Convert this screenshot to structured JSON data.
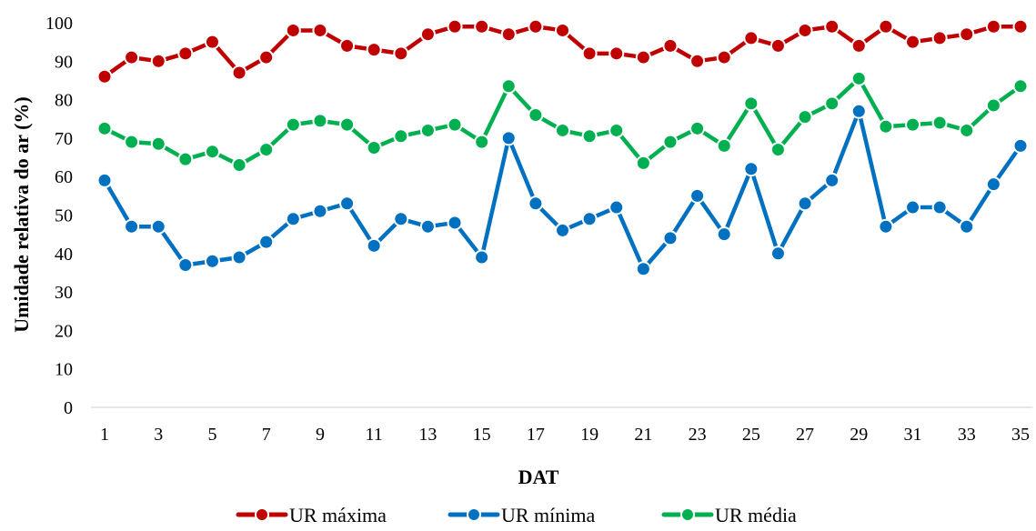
{
  "chart_data": {
    "type": "line",
    "title": "",
    "xlabel": "DAT",
    "ylabel": "Umidade relativa do ar (%)",
    "ylim": [
      0,
      100
    ],
    "yticks": [
      0,
      10,
      20,
      30,
      40,
      50,
      60,
      70,
      80,
      90,
      100
    ],
    "x": [
      1,
      2,
      3,
      4,
      5,
      6,
      7,
      8,
      9,
      10,
      11,
      12,
      13,
      14,
      15,
      16,
      17,
      18,
      19,
      20,
      21,
      22,
      23,
      24,
      25,
      26,
      27,
      28,
      29,
      30,
      31,
      32,
      33,
      34,
      35
    ],
    "xtick_labels": [
      "1",
      "3",
      "5",
      "7",
      "9",
      "11",
      "13",
      "15",
      "17",
      "19",
      "21",
      "23",
      "25",
      "27",
      "29",
      "31",
      "33",
      "35"
    ],
    "grid": false,
    "legend_position": "bottom",
    "series": [
      {
        "name": "UR máxima",
        "color": "#C00000",
        "values": [
          86,
          91,
          90,
          92,
          95,
          87,
          91,
          98,
          98,
          94,
          93,
          92,
          97,
          99,
          99,
          97,
          99,
          98,
          92,
          92,
          91,
          94,
          90,
          91,
          96,
          94,
          98,
          99,
          94,
          99,
          95,
          96,
          97,
          99,
          99
        ]
      },
      {
        "name": "UR mínima",
        "color": "#0070C0",
        "values": [
          59,
          47,
          47,
          37,
          38,
          39,
          43,
          49,
          51,
          53,
          42,
          49,
          47,
          48,
          39,
          70,
          53,
          46,
          49,
          52,
          36,
          44,
          55,
          45,
          62,
          40,
          53,
          59,
          77,
          47,
          52,
          52,
          47,
          58,
          68
        ]
      },
      {
        "name": "UR média",
        "color": "#00B050",
        "values": [
          72.5,
          69,
          68.5,
          64.5,
          66.5,
          63,
          67,
          73.5,
          74.5,
          73.5,
          67.5,
          70.5,
          72,
          73.5,
          69,
          83.5,
          76,
          72,
          70.5,
          72,
          63.5,
          69,
          72.5,
          68,
          79,
          67,
          75.5,
          79,
          85.5,
          73,
          73.5,
          74,
          72,
          78.5,
          83.5
        ]
      }
    ]
  }
}
